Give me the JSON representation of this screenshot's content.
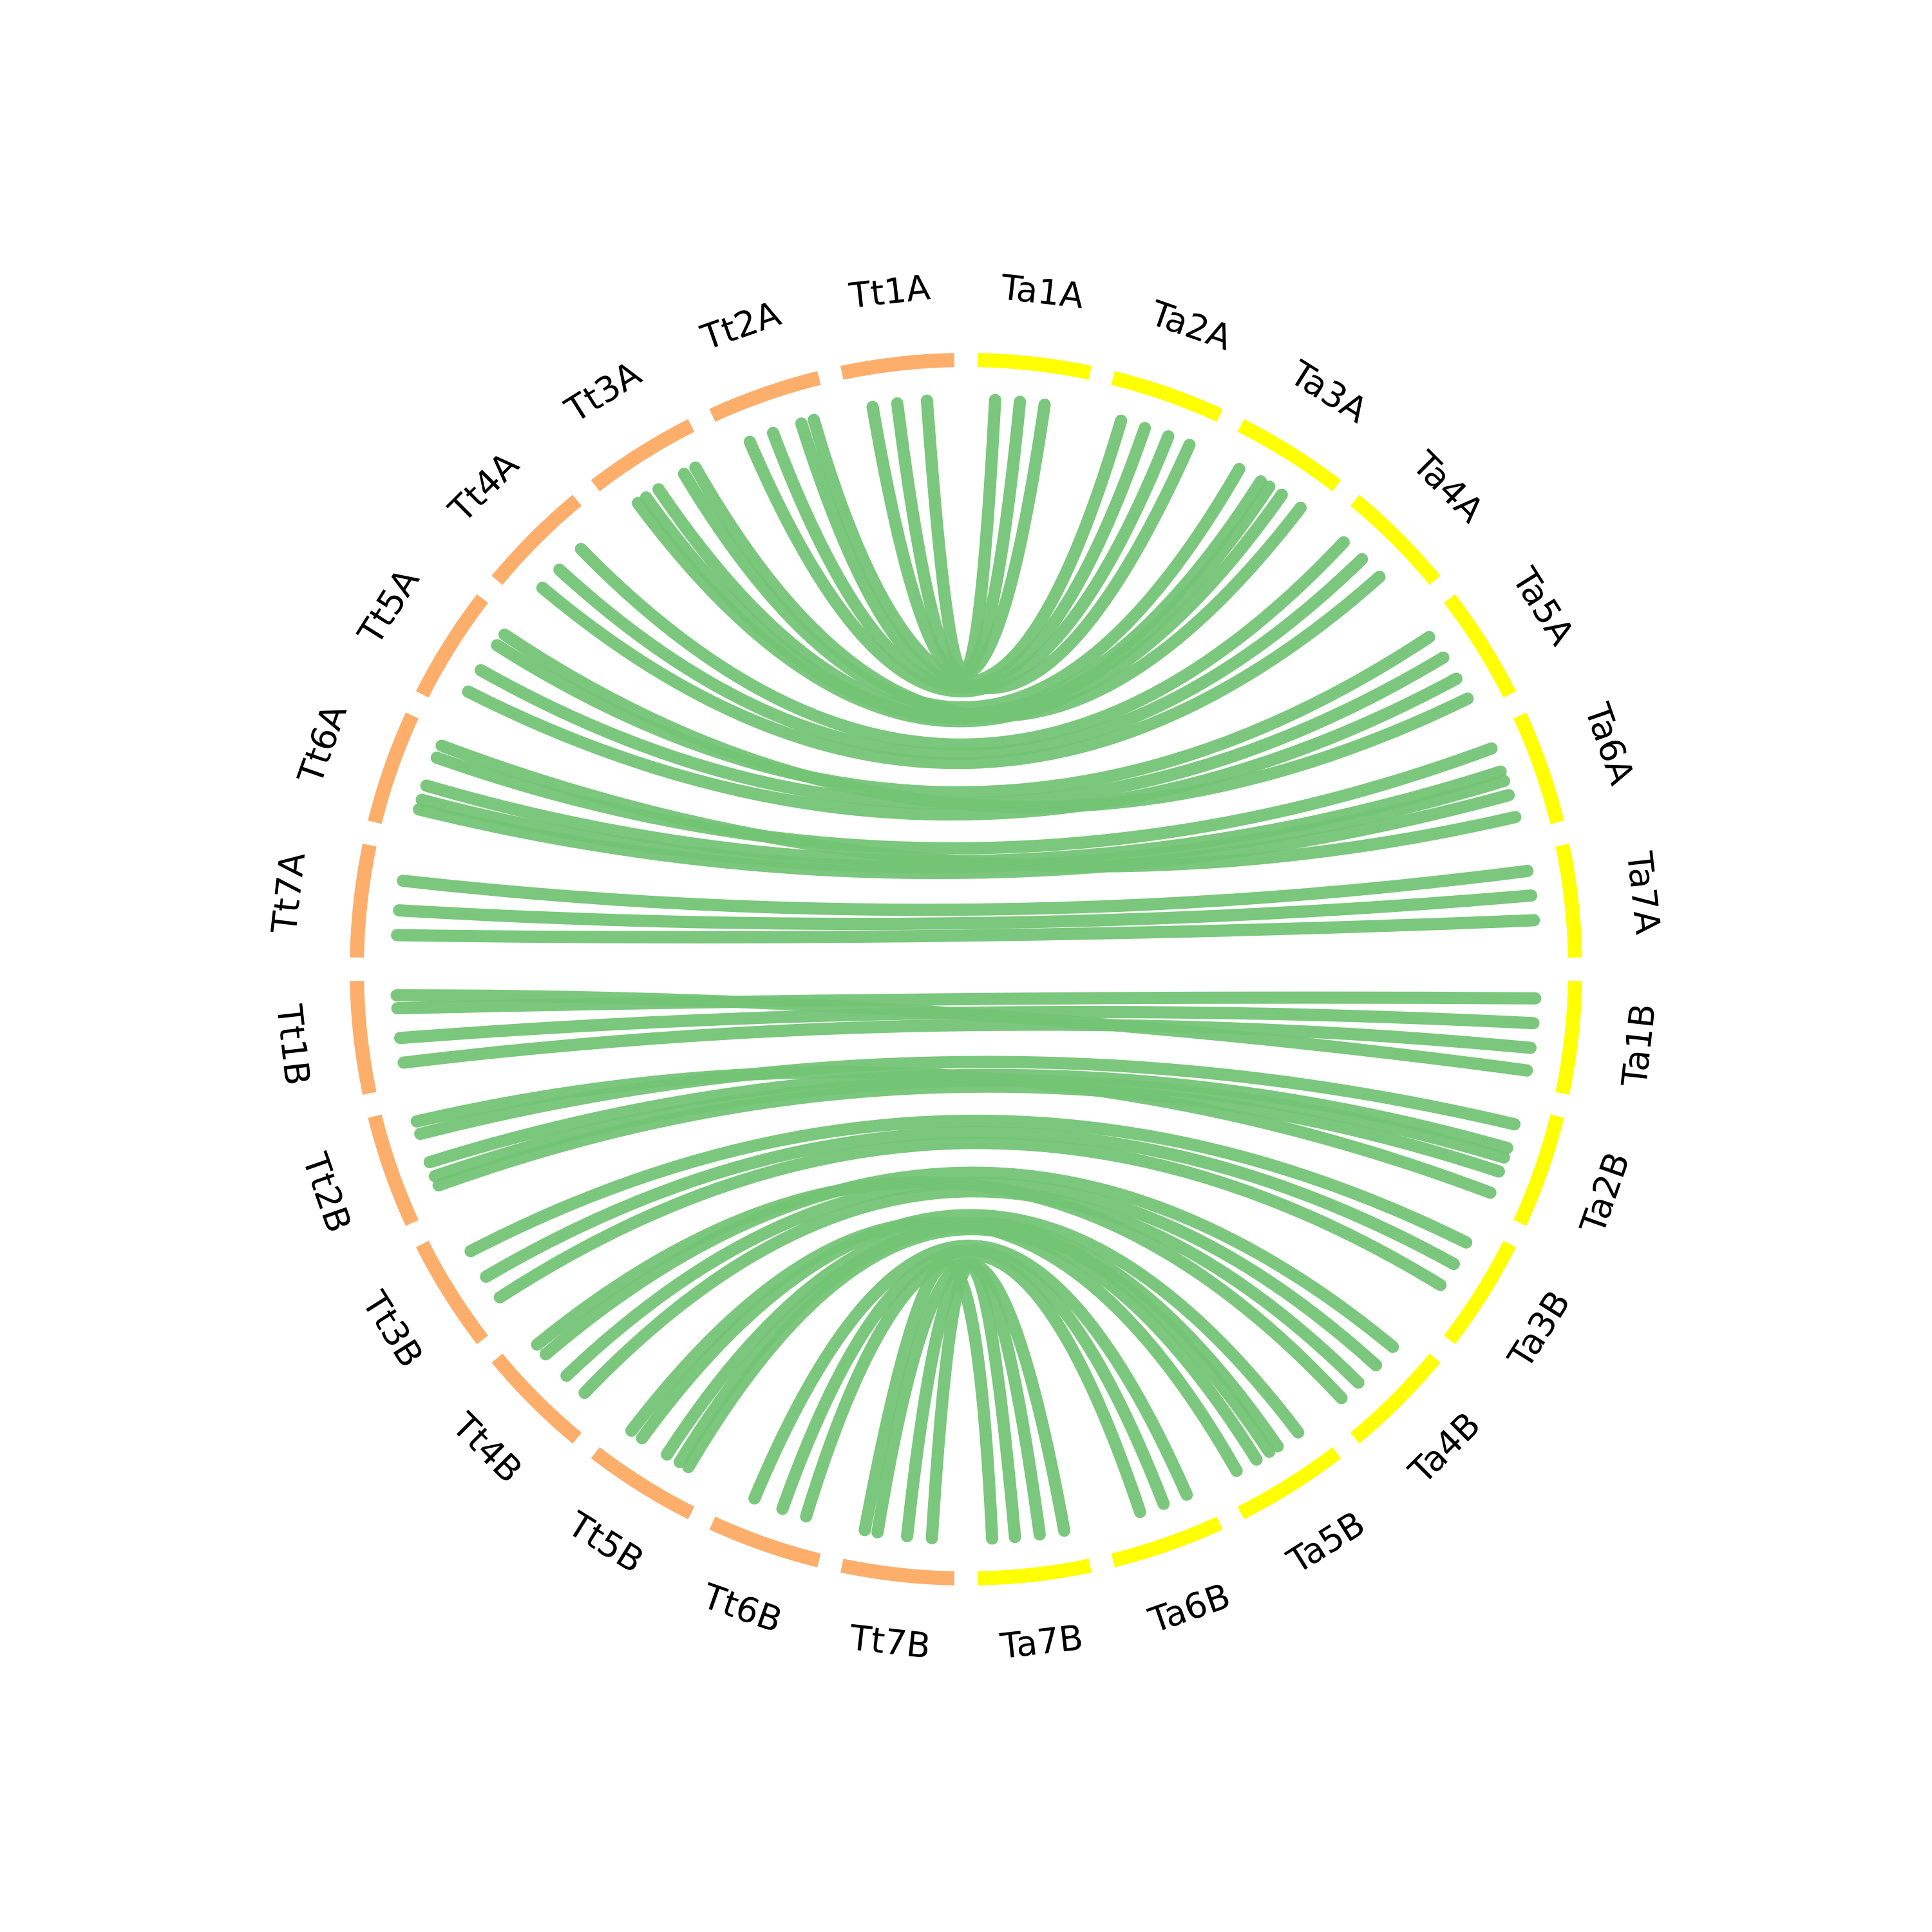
{
  "segments_right": [
    {
      "label": "Ta1A"
    },
    {
      "label": "Ta2A"
    },
    {
      "label": "Ta3A"
    },
    {
      "label": "Ta4A"
    },
    {
      "label": "Ta5A"
    },
    {
      "label": "Ta6A"
    },
    {
      "label": "Ta7A"
    },
    {
      "label": "Ta1B"
    },
    {
      "label": "Ta2B"
    },
    {
      "label": "Ta3B"
    },
    {
      "label": "Ta4B"
    },
    {
      "label": "Ta5B"
    },
    {
      "label": "Ta6B"
    },
    {
      "label": "Ta7B"
    }
  ],
  "segments_left": [
    {
      "label": "Tt1A"
    },
    {
      "label": "Tt2A"
    },
    {
      "label": "Tt3A"
    },
    {
      "label": "Tt4A"
    },
    {
      "label": "Tt5A"
    },
    {
      "label": "Tt6A"
    },
    {
      "label": "Tt7A"
    },
    {
      "label": "Tt1B"
    },
    {
      "label": "Tt2B"
    },
    {
      "label": "Tt3B"
    },
    {
      "label": "Tt4B"
    },
    {
      "label": "Tt5B"
    },
    {
      "label": "Tt6B"
    },
    {
      "label": "Tt7B"
    }
  ],
  "right_color": "#ffff00",
  "left_color": "#fdae6b",
  "link_color": "#74c476"
}
